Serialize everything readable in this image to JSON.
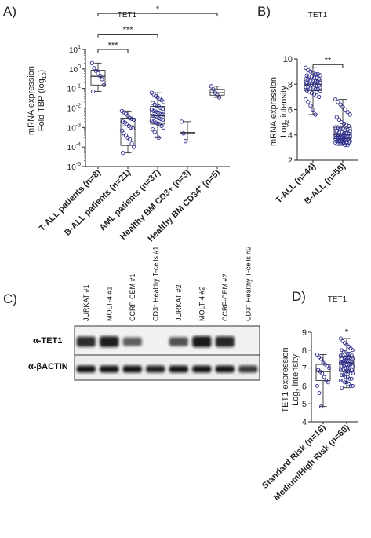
{
  "colors": {
    "axis": "#222222",
    "point": "#2c2c8c",
    "box": "#333333"
  },
  "chart_data": [
    {
      "panel": "A)",
      "type": "box",
      "title": "TET1",
      "ylabel_line1": "mRNA expression",
      "ylabel_line2": "Fold TBP (log10)",
      "ylabel_base": "Fold TBP (log",
      "ylabel_sub": "10",
      "ylabel_end": ")",
      "yscale": "log",
      "ylim": [
        1e-05,
        10
      ],
      "yticks": [
        {
          "v": 10,
          "b": "10",
          "e": "1"
        },
        {
          "v": 1,
          "b": "10",
          "e": "0"
        },
        {
          "v": 0.1,
          "b": "10",
          "e": "-1"
        },
        {
          "v": 0.01,
          "b": "10",
          "e": "-2"
        },
        {
          "v": 0.001,
          "b": "10",
          "e": "-3"
        },
        {
          "v": 0.0001,
          "b": "10",
          "e": "-4"
        },
        {
          "v": 1e-05,
          "b": "10",
          "e": "-5"
        }
      ],
      "categories": [
        "T-ALL patients (n=8)",
        "B-ALL patients (n=21)",
        "AML patients (n=37)",
        "Healthy BM CD3+ (n=3)",
        "Healthy BM CD34+ (n=5)"
      ],
      "cat_labels": [
        {
          "text": "T-ALL patients (n=8)"
        },
        {
          "text": "B-ALL patients (n=21)"
        },
        {
          "text": "AML patients (n=37)"
        },
        {
          "text": "Healthy BM CD3+ (n=3)"
        },
        {
          "base": "Healthy BM CD34",
          "sup": "+",
          "end": " (n=5)"
        }
      ],
      "boxes": [
        {
          "min": 0.07,
          "q1": 0.15,
          "median": 0.42,
          "q3": 0.85,
          "max": 2.0
        },
        {
          "min": 5e-05,
          "q1": 0.00012,
          "median": 0.0012,
          "q3": 0.003,
          "max": 0.007
        },
        {
          "min": 0.0003,
          "q1": 0.0015,
          "median": 0.004,
          "q3": 0.012,
          "max": 0.06
        },
        {
          "min": 0.0002,
          "q1": 0.00055,
          "median": 0.00055,
          "q3": 0.00055,
          "max": 0.002
        },
        {
          "min": 0.035,
          "q1": 0.045,
          "median": 0.06,
          "q3": 0.09,
          "max": 0.13
        }
      ],
      "points": [
        [
          2.0,
          1.1,
          0.8,
          0.6,
          0.45,
          0.3,
          0.15,
          0.07
        ],
        [
          0.007,
          0.006,
          0.005,
          0.004,
          0.003,
          0.0028,
          0.0025,
          0.002,
          0.0018,
          0.0015,
          0.0012,
          0.001,
          0.0009,
          0.0007,
          0.0005,
          0.0004,
          0.0003,
          0.00025,
          0.00015,
          0.0001,
          5e-05
        ],
        [
          0.06,
          0.05,
          0.04,
          0.035,
          0.03,
          0.025,
          0.02,
          0.018,
          0.015,
          0.013,
          0.012,
          0.01,
          0.009,
          0.008,
          0.007,
          0.0065,
          0.006,
          0.0055,
          0.005,
          0.0045,
          0.004,
          0.0038,
          0.0035,
          0.003,
          0.0028,
          0.0025,
          0.0022,
          0.002,
          0.0018,
          0.0016,
          0.0015,
          0.0012,
          0.001,
          0.0008,
          0.0006,
          0.0004,
          0.0003
        ],
        [
          0.002,
          0.0005,
          0.0002
        ],
        [
          0.13,
          0.09,
          0.06,
          0.045,
          0.035
        ]
      ],
      "significance": [
        {
          "from": 0,
          "to": 1,
          "label": "***",
          "y": 10.0
        },
        {
          "from": 0,
          "to": 2,
          "label": "***",
          "y": 60.0
        },
        {
          "from": 0,
          "to": 4,
          "label": "*",
          "y": 700.0
        }
      ]
    },
    {
      "panel": "B)",
      "type": "box",
      "title": "TET1",
      "ylabel_line1": "mRNA expression",
      "ylabel_line2": "Log2 intensity",
      "ylabel_base": "Log",
      "ylabel_sub": "2",
      "ylabel_end": " intensity",
      "yscale": "linear",
      "ylim": [
        2,
        10
      ],
      "yticks": [
        {
          "v": 2,
          "t": "2"
        },
        {
          "v": 4,
          "t": "4"
        },
        {
          "v": 6,
          "t": "6"
        },
        {
          "v": 8,
          "t": "8"
        },
        {
          "v": 10,
          "t": "10"
        }
      ],
      "categories": [
        "T-ALL (n=44)",
        "B-ALL (n=58)"
      ],
      "cat_labels": [
        {
          "text": "T-ALL (n=44)"
        },
        {
          "text": "B-ALL (n=58)"
        }
      ],
      "boxes": [
        {
          "min": 5.6,
          "q1": 7.5,
          "median": 8.0,
          "q3": 8.4,
          "max": 9.3
        },
        {
          "min": 3.2,
          "q1": 3.7,
          "median": 4.0,
          "q3": 4.6,
          "max": 6.8
        }
      ],
      "points": [
        [
          9.3,
          9.1,
          9.0,
          8.9,
          8.8,
          8.8,
          8.7,
          8.7,
          8.6,
          8.6,
          8.5,
          8.5,
          8.4,
          8.4,
          8.4,
          8.3,
          8.3,
          8.2,
          8.2,
          8.1,
          8.1,
          8.0,
          8.0,
          8.0,
          7.9,
          7.9,
          7.8,
          7.8,
          7.7,
          7.7,
          7.6,
          7.6,
          7.5,
          7.5,
          7.4,
          7.3,
          7.2,
          7.1,
          7.0,
          6.8,
          6.6,
          6.3,
          6.0,
          5.6
        ],
        [
          6.8,
          6.6,
          6.4,
          6.2,
          6.0,
          5.8,
          5.6,
          5.4,
          5.2,
          5.0,
          4.9,
          4.8,
          4.7,
          4.6,
          4.6,
          4.5,
          4.5,
          4.4,
          4.4,
          4.3,
          4.3,
          4.2,
          4.2,
          4.1,
          4.1,
          4.1,
          4.0,
          4.0,
          4.0,
          3.9,
          3.9,
          3.9,
          3.9,
          3.8,
          3.8,
          3.8,
          3.8,
          3.7,
          3.7,
          3.7,
          3.7,
          3.6,
          3.6,
          3.6,
          3.6,
          3.5,
          3.5,
          3.5,
          3.5,
          3.4,
          3.4,
          3.4,
          3.4,
          3.3,
          3.3,
          3.3,
          3.2,
          3.2
        ]
      ],
      "significance": [
        {
          "from": 0,
          "to": 1,
          "label": "**",
          "y": 9.55
        }
      ]
    },
    {
      "panel": "D)",
      "type": "box",
      "title": "TET1",
      "ylabel_line1": "TET1 expression",
      "ylabel_line2": "Log2 intensity",
      "ylabel_base": "Log",
      "ylabel_sub": "2",
      "ylabel_end": " intensity",
      "yscale": "linear",
      "ylim": [
        4,
        9
      ],
      "yticks": [
        {
          "v": 4,
          "t": "4"
        },
        {
          "v": 5,
          "t": "5"
        },
        {
          "v": 6,
          "t": "6"
        },
        {
          "v": 7,
          "t": "7"
        },
        {
          "v": 8,
          "t": "8"
        },
        {
          "v": 9,
          "t": "9"
        }
      ],
      "categories": [
        "Standard Risk (n=16)",
        "Medium/High Risk (n=60)"
      ],
      "cat_labels": [
        {
          "text": "Standard Risk (n=16)"
        },
        {
          "text": "Medium/High Risk (n=60)"
        }
      ],
      "boxes": [
        {
          "min": 4.85,
          "q1": 6.3,
          "median": 6.8,
          "q3": 7.2,
          "max": 7.75
        },
        {
          "min": 5.9,
          "q1": 6.8,
          "median": 7.3,
          "q3": 7.65,
          "max": 8.65
        }
      ],
      "points": [
        [
          7.75,
          7.6,
          7.5,
          7.3,
          7.2,
          7.1,
          7.0,
          6.9,
          6.8,
          6.7,
          6.5,
          6.3,
          6.2,
          6.0,
          5.6,
          4.85
        ],
        [
          8.65,
          8.5,
          8.4,
          8.3,
          8.2,
          8.1,
          8.0,
          8.0,
          7.9,
          7.9,
          7.8,
          7.8,
          7.7,
          7.7,
          7.7,
          7.6,
          7.6,
          7.6,
          7.5,
          7.5,
          7.5,
          7.4,
          7.4,
          7.4,
          7.4,
          7.3,
          7.3,
          7.3,
          7.3,
          7.2,
          7.2,
          7.2,
          7.1,
          7.1,
          7.1,
          7.0,
          7.0,
          7.0,
          6.9,
          6.9,
          6.9,
          6.8,
          6.8,
          6.8,
          6.7,
          6.7,
          6.6,
          6.6,
          6.5,
          6.5,
          6.4,
          6.4,
          6.3,
          6.3,
          6.2,
          6.2,
          6.1,
          6.0,
          6.0,
          5.9
        ]
      ],
      "star": {
        "group": 1,
        "label": "*"
      }
    }
  ],
  "blot": {
    "panel": "C)",
    "lanes": [
      {
        "label": "JURKAT #1"
      },
      {
        "label": "MOLT-4 #1"
      },
      {
        "label": "CCRF-CEM #1"
      },
      {
        "base": "CD3",
        "sup": "+",
        "end": " Healthy T-cells #1"
      },
      {
        "label": "JURKAT #2"
      },
      {
        "label": "MOLT-4 #2"
      },
      {
        "label": "CCRF-CEM #2"
      },
      {
        "base": "CD3",
        "sup": "+",
        "end": " Healthy T-cells #2"
      }
    ],
    "rows": [
      {
        "label": "α-TET1",
        "intensities": [
          0.85,
          0.95,
          0.5,
          0.0,
          0.6,
          1.0,
          0.9,
          0.0
        ]
      },
      {
        "label": "α-βACTIN",
        "intensities": [
          1.0,
          1.0,
          1.0,
          0.9,
          1.0,
          1.0,
          1.0,
          0.75
        ]
      }
    ]
  }
}
